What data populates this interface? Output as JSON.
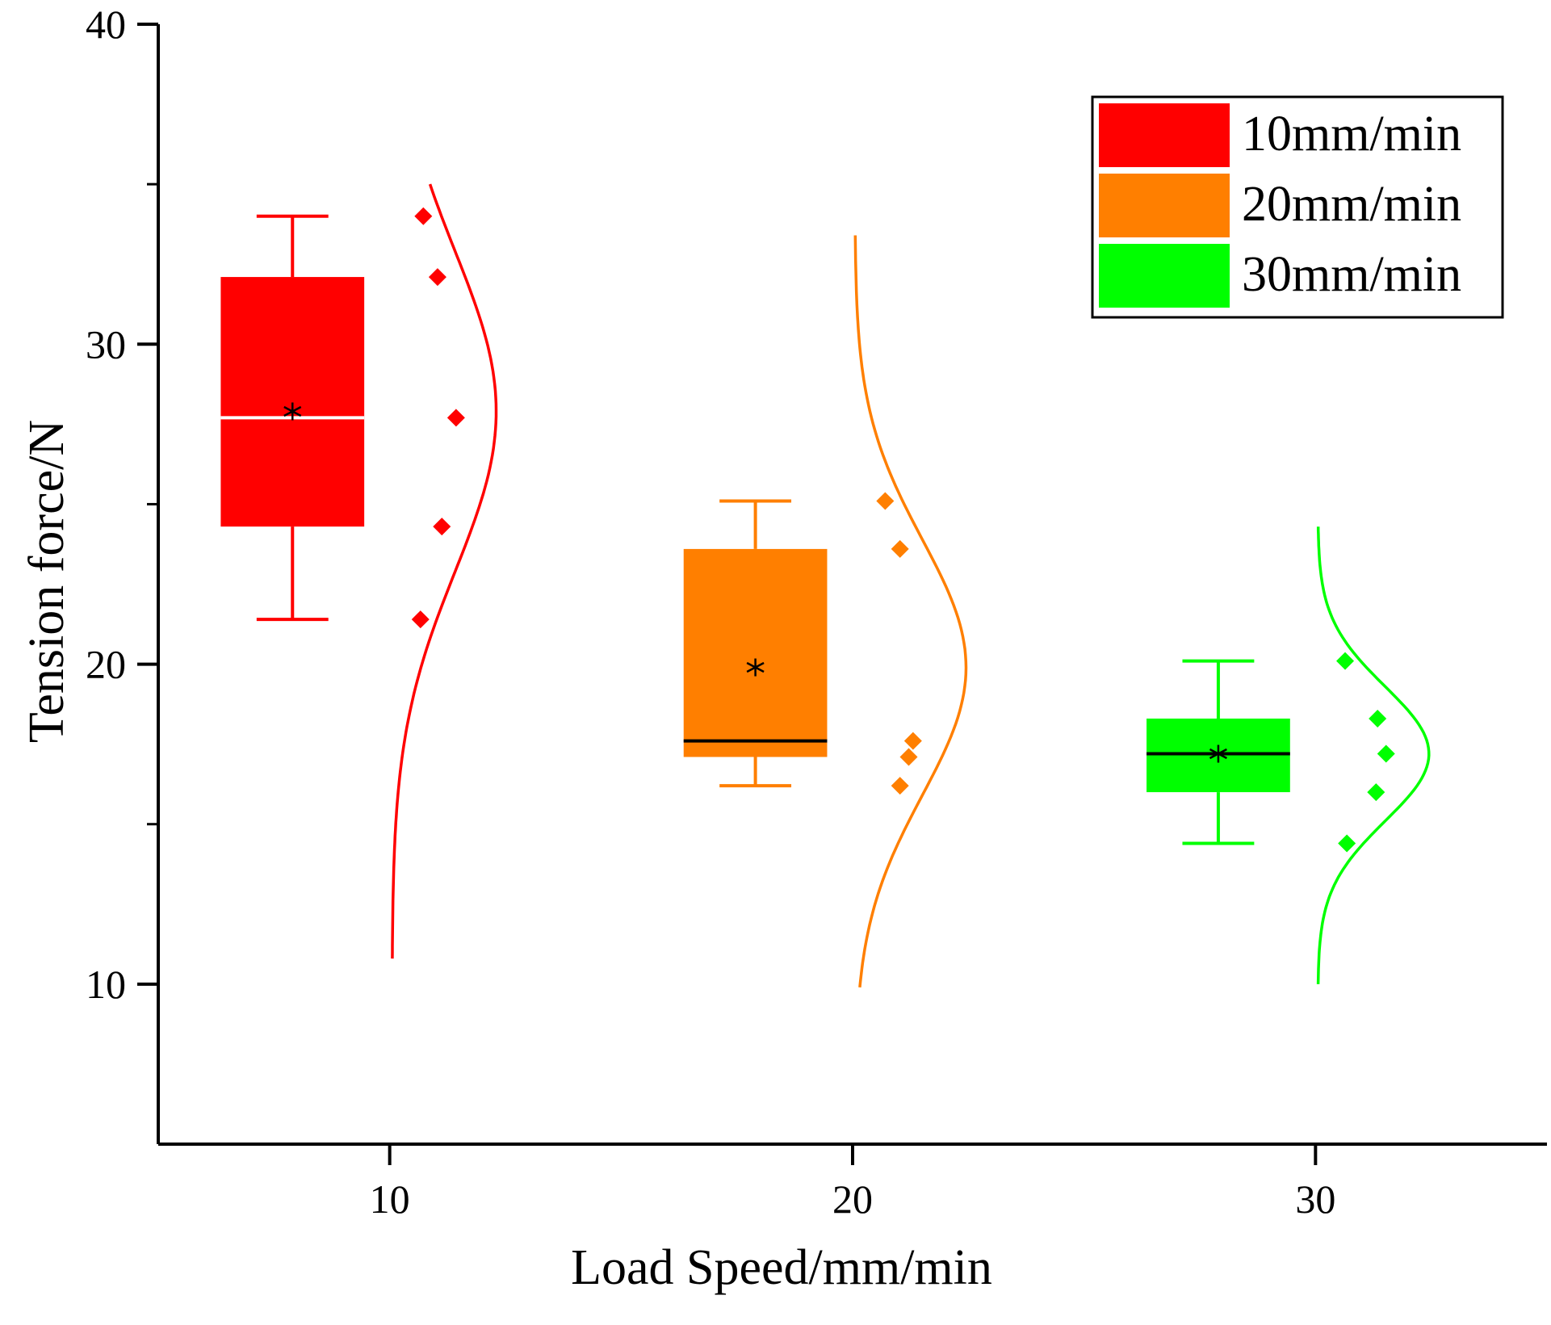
{
  "chart_data": {
    "type": "box",
    "title": "",
    "xlabel": "Load Speed/mm/min",
    "ylabel": "Tension force/N",
    "ylim": [
      5,
      40
    ],
    "xlim": [
      5,
      35
    ],
    "yticks": [
      10,
      20,
      30,
      40
    ],
    "xticks": [
      10,
      20,
      30
    ],
    "ytick_labels": [
      "10",
      "20",
      "30",
      "40"
    ],
    "xtick_labels": [
      "10",
      "20",
      "30"
    ],
    "legend_position": "top-right",
    "series": [
      {
        "name": "10mm/min",
        "color": "#ff0000",
        "median_color": "#ffffff",
        "x": 10,
        "whisker_low": 21.4,
        "q1": 24.3,
        "median": 27.7,
        "q3": 32.1,
        "whisker_high": 34.0,
        "mean": 27.9,
        "points": [
          34.0,
          32.1,
          27.7,
          24.3,
          21.4
        ],
        "normal_curve": {
          "mean": 27.9,
          "sd": 5.0,
          "range": [
            10.8,
            35.0
          ]
        }
      },
      {
        "name": "20mm/min",
        "color": "#ff7f00",
        "median_color": "#000000",
        "x": 20,
        "whisker_low": 16.2,
        "q1": 17.1,
        "median": 17.6,
        "q3": 23.6,
        "whisker_high": 25.1,
        "mean": 19.9,
        "points": [
          25.1,
          23.6,
          17.6,
          17.1,
          16.2
        ],
        "normal_curve": {
          "mean": 19.9,
          "sd": 4.0,
          "range": [
            9.9,
            33.4
          ]
        }
      },
      {
        "name": "30mm/min",
        "color": "#00ff00",
        "median_color": "#000000",
        "x": 30,
        "whisker_low": 14.4,
        "q1": 16.0,
        "median": 17.2,
        "q3": 18.3,
        "whisker_high": 20.1,
        "mean": 17.2,
        "points": [
          20.1,
          18.3,
          17.2,
          16.0,
          14.4
        ],
        "normal_curve": {
          "mean": 17.2,
          "sd": 2.1,
          "range": [
            10.0,
            24.3
          ]
        }
      }
    ]
  }
}
